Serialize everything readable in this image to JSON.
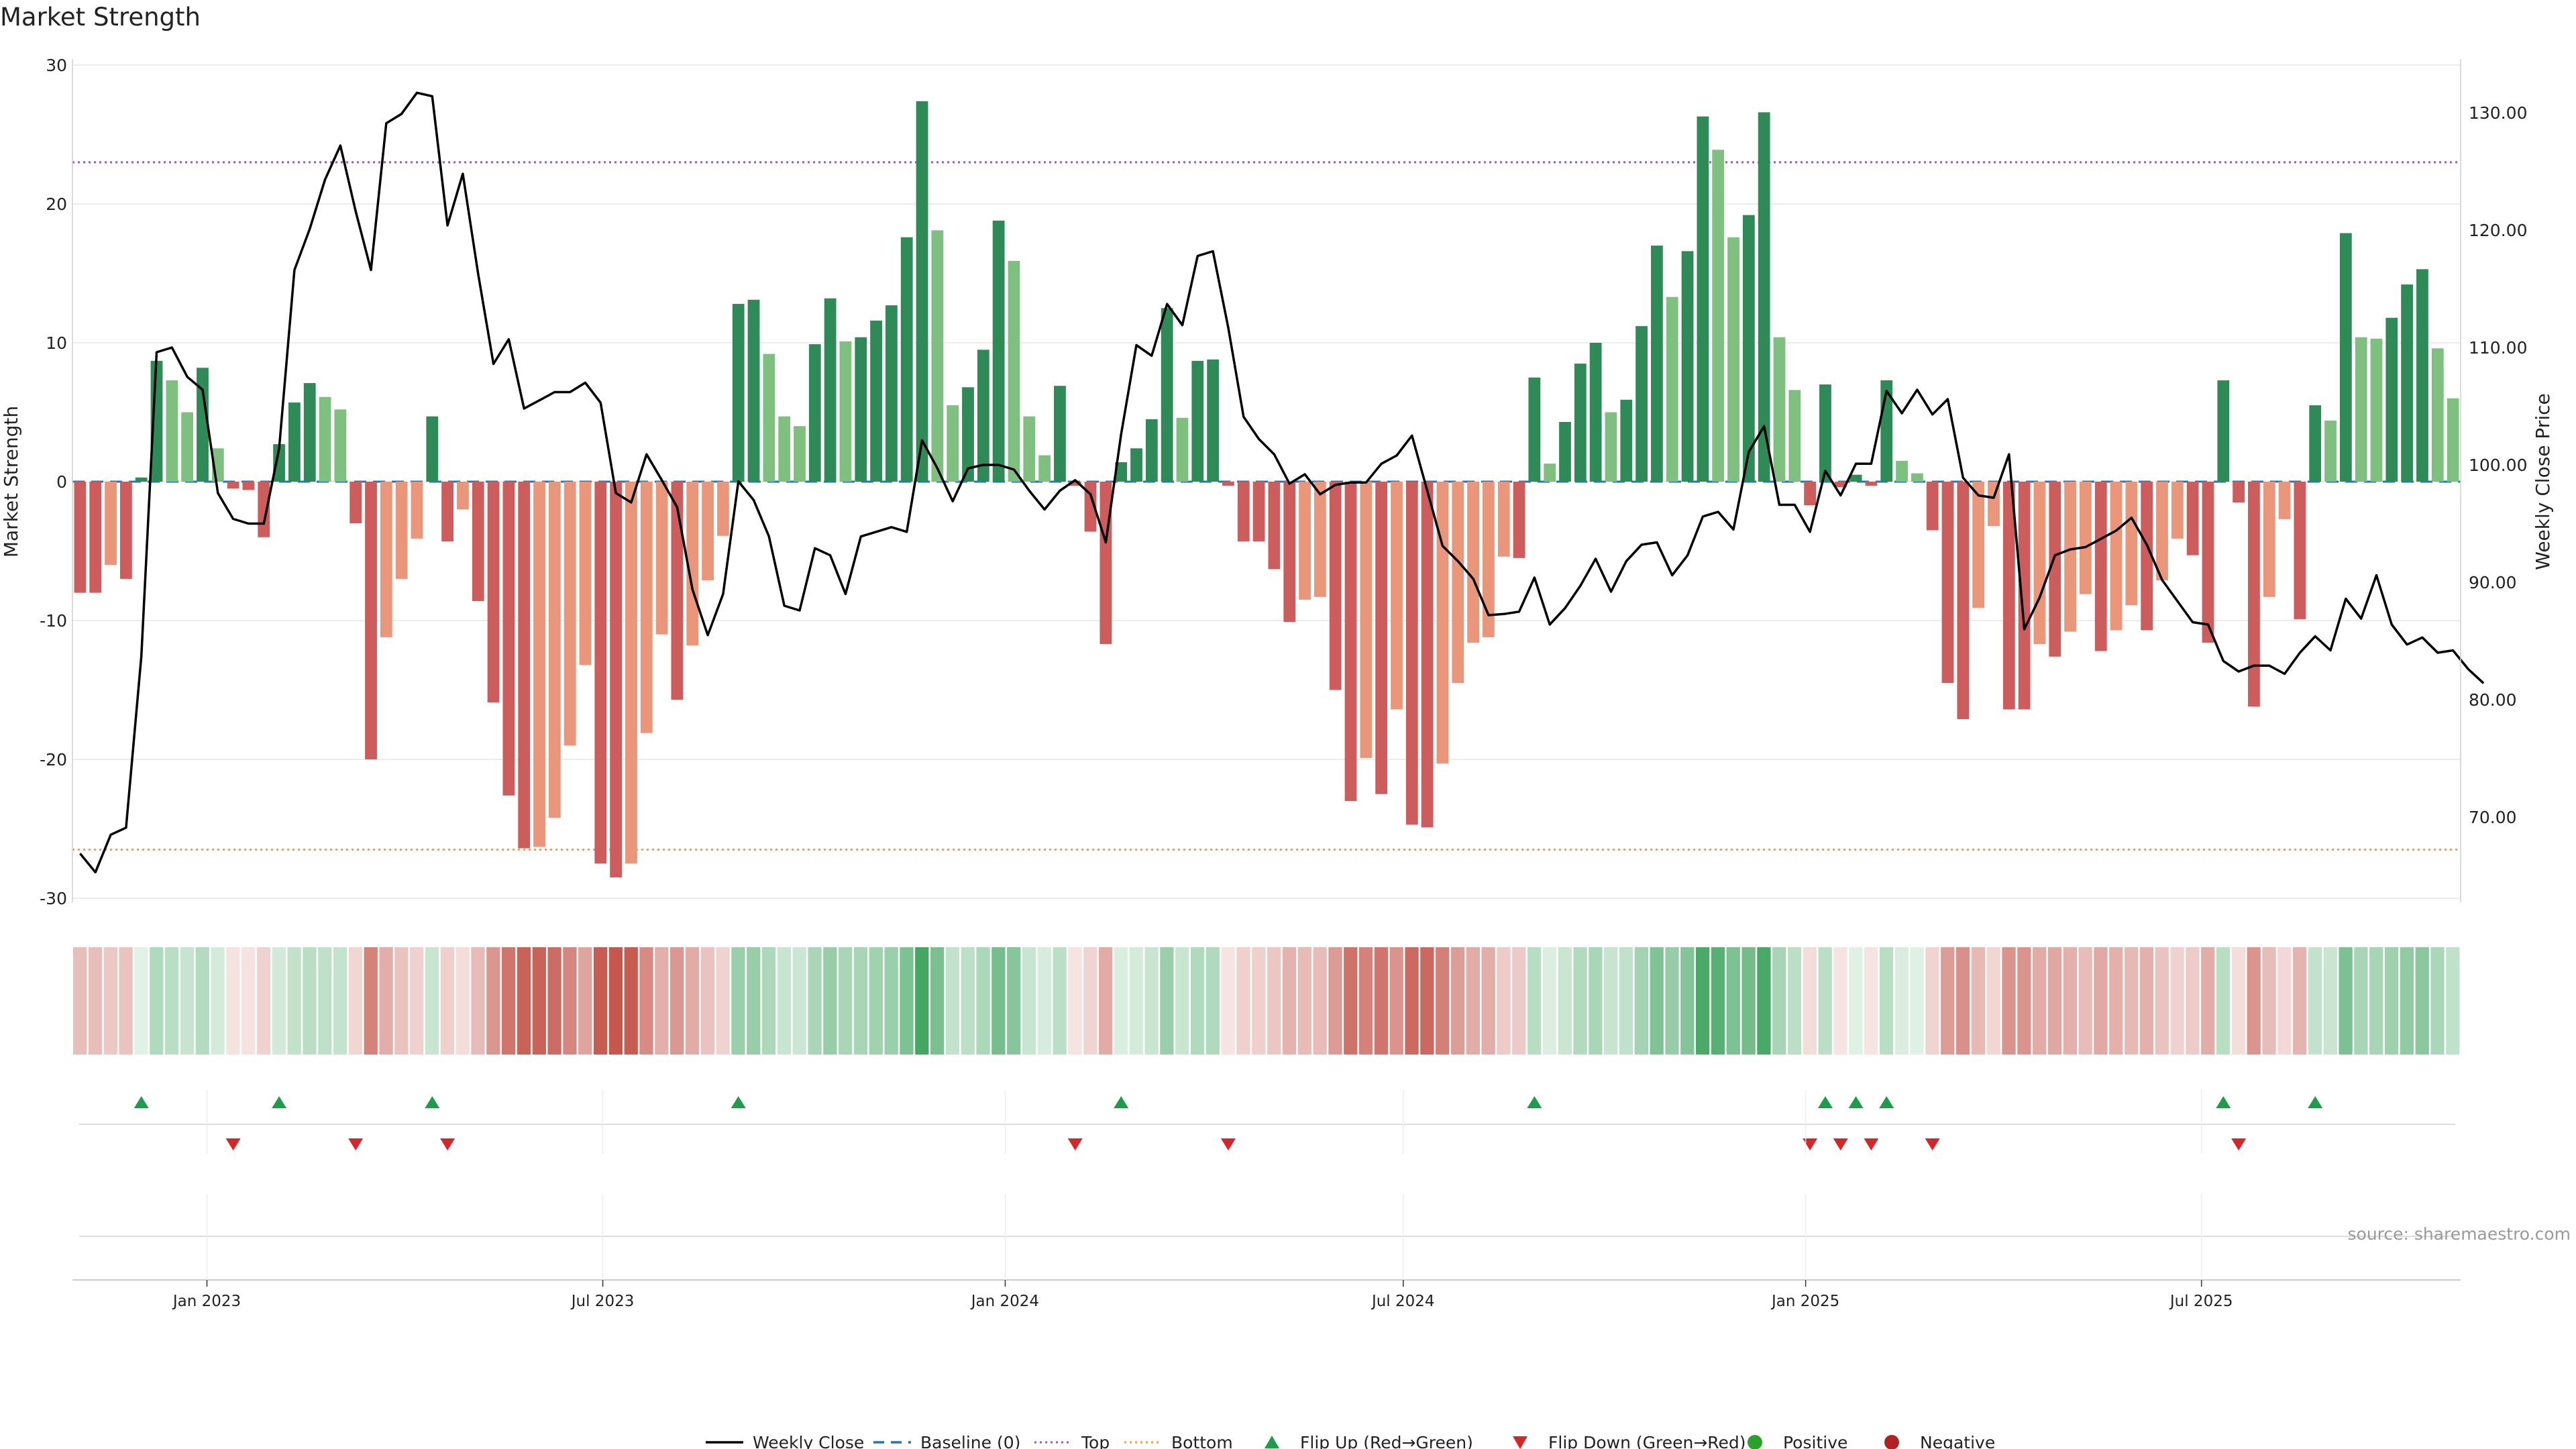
{
  "title": "Market Strength",
  "source": "source: sharemaestro.com",
  "colors": {
    "strong_green": "#2e8b57",
    "light_green": "#7fbf7f",
    "strong_red": "#cd5c5c",
    "light_red": "#e9967a",
    "top_line": "#9b59b6",
    "bottom_line": "#f0a050",
    "baseline": "#1f77b4",
    "price": "#000000",
    "flip_up": "#1e9c4c",
    "flip_down": "#d62728",
    "positive": "#2ca02c",
    "negative": "#b22222"
  },
  "chart_data": {
    "type": "bar",
    "title": "Market Strength",
    "ylabel": "Market Strength",
    "y2label": "Weekly Close Price",
    "ylim": [
      -30,
      30
    ],
    "y2lim": [
      62,
      134
    ],
    "yticks": [
      30,
      20,
      10,
      0,
      -10,
      -20,
      -30
    ],
    "y2ticks": [
      "130.00",
      "120.00",
      "110.00",
      "100.00",
      "90.00",
      "80.00",
      "70.00"
    ],
    "x_start": "2022-11-04",
    "x_step_days": 7,
    "x_ticks": [
      {
        "label": "Jan 2023",
        "date": "2023-01-01"
      },
      {
        "label": "Jul 2023",
        "date": "2023-07-01"
      },
      {
        "label": "Jan 2024",
        "date": "2024-01-01"
      },
      {
        "label": "Jul 2024",
        "date": "2024-07-01"
      },
      {
        "label": "Jan 2025",
        "date": "2025-01-01"
      },
      {
        "label": "Jul 2025",
        "date": "2025-07-01"
      }
    ],
    "top": 23,
    "bottom": -26.5,
    "strength": [
      -8,
      -8,
      -6,
      -7,
      0.3,
      8.7,
      7.3,
      5,
      8.2,
      2.4,
      -0.5,
      -0.6,
      -4,
      2.7,
      5.7,
      7.1,
      6.1,
      5.2,
      -3,
      -20,
      -11.2,
      -7,
      -4.1,
      4.7,
      -4.3,
      -2,
      -8.6,
      -15.9,
      -22.6,
      -26.4,
      -26.3,
      -24.2,
      -19,
      -13.2,
      -27.5,
      -28.5,
      -27.5,
      -18.1,
      -11,
      -15.7,
      -11.8,
      -7.1,
      -3.9,
      12.8,
      13.1,
      9.2,
      4.7,
      4,
      9.9,
      13.2,
      10.1,
      10.4,
      11.6,
      12.7,
      17.6,
      27.4,
      18.1,
      5.5,
      6.8,
      9.5,
      18.8,
      15.9,
      4.7,
      1.9,
      6.9,
      -0.3,
      -3.6,
      -11.7,
      1.4,
      2.4,
      4.5,
      12.5,
      4.6,
      8.7,
      8.8,
      -0.3,
      -4.3,
      -4.3,
      -6.3,
      -10.1,
      -8.5,
      -8.3,
      -15,
      -23,
      -19.9,
      -22.5,
      -16.4,
      -24.7,
      -24.9,
      -20.3,
      -14.5,
      -11.6,
      -11.2,
      -5.4,
      -5.5,
      7.5,
      1.3,
      4.3,
      8.5,
      10,
      5,
      5.9,
      11.2,
      17,
      13.3,
      16.6,
      26.3,
      23.9,
      17.6,
      19.2,
      26.6,
      10.4,
      6.6,
      -1.7,
      7,
      -0.4,
      0.5,
      -0.3,
      7.3,
      1.5,
      0.6,
      -3.5,
      -14.5,
      -17.1,
      -9.1,
      -3.2,
      -16.4,
      -16.4,
      -11.7,
      -12.6,
      -10.8,
      -8.1,
      -12.2,
      -10.7,
      -8.9,
      -10.7,
      -7.1,
      -4.1,
      -5.3,
      -11.6,
      7.3,
      -1.5,
      -16.2,
      -8.3,
      -2.7,
      -9.9,
      5.5,
      4.4,
      17.9,
      10.4,
      10.3,
      11.8,
      14.2,
      15.3,
      9.6,
      6
    ],
    "price": [
      66.9,
      65.3,
      68.5,
      69.1,
      83.7,
      109.6,
      110,
      107.5,
      106.4,
      97.6,
      95.4,
      95,
      95,
      101.4,
      116.6,
      120.1,
      124.3,
      127.2,
      121.6,
      116.6,
      129.1,
      129.9,
      131.7,
      131.4,
      120.4,
      124.8,
      116.3,
      108.6,
      110.7,
      104.8,
      105.5,
      106.2,
      106.2,
      107,
      105.3,
      97.6,
      96.8,
      100.9,
      98.7,
      96.4,
      89.4,
      85.5,
      89,
      98.6,
      97,
      93.9,
      88,
      87.6,
      92.9,
      92.3,
      89,
      93.9,
      94.3,
      94.7,
      94.3,
      102.1,
      99.7,
      96.9,
      99.7,
      100,
      100,
      99.6,
      97.8,
      96.2,
      97.8,
      98.7,
      97.5,
      93.4,
      102.6,
      110.2,
      109.3,
      113.7,
      111.9,
      117.8,
      118.2,
      111.7,
      104.1,
      102.2,
      100.9,
      98.4,
      99.2,
      97.5,
      98.3,
      98.5,
      98.5,
      100.1,
      100.8,
      102.5,
      97.8,
      93.1,
      91.8,
      90.3,
      87.2,
      87.3,
      87.5,
      90.4,
      86.4,
      87.8,
      89.7,
      92,
      89.2,
      91.8,
      93.2,
      93.4,
      90.6,
      92.3,
      95.6,
      96,
      94.5,
      101.1,
      103.3,
      96.6,
      96.6,
      94.3,
      99.5,
      97.4,
      100.1,
      100.1,
      106.3,
      104.4,
      106.4,
      104.3,
      105.6,
      98.9,
      97.4,
      97.2,
      100.9,
      86,
      88.7,
      92.3,
      92.8,
      93,
      93.7,
      94.4,
      95.5,
      93.2,
      90.2,
      88.4,
      86.6,
      86.4,
      83.3,
      82.4,
      82.9,
      82.9,
      82.2,
      84,
      85.4,
      84.2,
      88.6,
      86.9,
      90.6,
      86.4,
      84.7,
      85.3,
      84,
      84.2,
      82.6,
      81.4
    ]
  },
  "legend": [
    {
      "label": "Weekly Close",
      "style": "line",
      "color": "#000000"
    },
    {
      "label": "Baseline (0)",
      "style": "dash",
      "color": "#1f77b4"
    },
    {
      "label": "Top",
      "style": "dot",
      "color": "#9b59b6"
    },
    {
      "label": "Bottom",
      "style": "dot",
      "color": "#f0a050"
    },
    {
      "label": "Flip Up (Red→Green)",
      "style": "tri-up",
      "color": "#1e9c4c"
    },
    {
      "label": "Flip Down (Green→Red)",
      "style": "tri-down",
      "color": "#d62728"
    },
    {
      "label": "Positive",
      "style": "circle",
      "color": "#2ca02c"
    },
    {
      "label": "Negative",
      "style": "circle",
      "color": "#b22222"
    }
  ]
}
